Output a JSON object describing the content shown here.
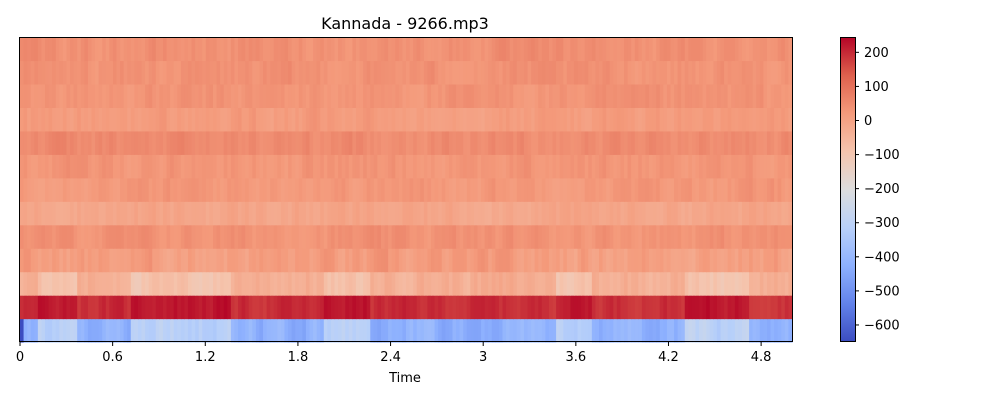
{
  "chart_data": {
    "type": "heatmap",
    "title": "Kannada - 9266.mp3",
    "xlabel": "Time",
    "ylabel": "",
    "xlim": [
      0,
      5.0
    ],
    "x_ticks": [
      0,
      0.6,
      1.2,
      1.8,
      2.4,
      3,
      3.6,
      4.2,
      4.8
    ],
    "x_tick_labels": [
      "0",
      "0.6",
      "1.2",
      "1.8",
      "2.4",
      "3",
      "3.6",
      "4.2",
      "4.8"
    ],
    "n_rows": 13,
    "n_frames": 216,
    "rows_bottom_to_top": [
      {
        "index": 0,
        "baseline": -420
      },
      {
        "index": 1,
        "baseline": 195
      },
      {
        "index": 2,
        "baseline": -30
      },
      {
        "index": 3,
        "baseline": 10
      },
      {
        "index": 4,
        "baseline": 35
      },
      {
        "index": 5,
        "baseline": -10
      },
      {
        "index": 6,
        "baseline": 25
      },
      {
        "index": 7,
        "baseline": 30
      },
      {
        "index": 8,
        "baseline": 50
      },
      {
        "index": 9,
        "baseline": 15
      },
      {
        "index": 10,
        "baseline": 30
      },
      {
        "index": 11,
        "baseline": 35
      },
      {
        "index": 12,
        "baseline": 40
      }
    ],
    "colorbar": {
      "colormap": "coolwarm",
      "vmin": -650,
      "vmax": 245,
      "ticks": [
        200,
        100,
        0,
        -100,
        -200,
        -300,
        -400,
        -500,
        -600
      ],
      "tick_labels": [
        "200",
        "100",
        "0",
        "−100",
        "−200",
        "−300",
        "−400",
        "−500",
        "−600"
      ]
    }
  }
}
